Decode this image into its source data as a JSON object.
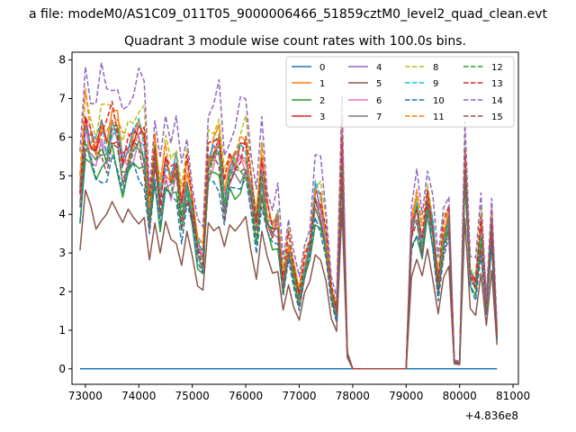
{
  "chart_data": {
    "type": "line",
    "suptitle": "a file: modeM0/AS1C09_011T05_9000006466_51859cztM0_level2_quad_clean.evt",
    "title": "Quadrant 3 module wise count rates with 100.0s bins.",
    "xlabel": "",
    "ylabel": "",
    "x_offset_label": "+4.836e8",
    "xlim": [
      72750,
      81100
    ],
    "ylim": [
      -0.4,
      8.2
    ],
    "xticks": [
      73000,
      74000,
      75000,
      76000,
      77000,
      78000,
      79000,
      80000,
      81000
    ],
    "yticks": [
      0,
      1,
      2,
      3,
      4,
      5,
      6,
      7,
      8
    ],
    "grid": false,
    "legend_placement": "top-right",
    "x": [
      72900,
      73000,
      73100,
      73200,
      73300,
      73400,
      73500,
      73600,
      73700,
      73800,
      73900,
      74000,
      74100,
      74200,
      74300,
      74400,
      74500,
      74600,
      74700,
      74800,
      74900,
      75000,
      75100,
      75200,
      75300,
      75400,
      75500,
      75600,
      75700,
      75800,
      75900,
      76000,
      76100,
      76200,
      76300,
      76400,
      76500,
      76600,
      76700,
      76800,
      76900,
      77000,
      77100,
      77200,
      77300,
      77400,
      77500,
      77600,
      77700,
      77800,
      77900,
      78000,
      78100,
      78200,
      78300,
      78400,
      78500,
      78600,
      78700,
      78800,
      78900,
      79000,
      79100,
      79200,
      79300,
      79400,
      79500,
      79600,
      79700,
      79800,
      79900,
      80000,
      80100,
      80200,
      80300,
      80400,
      80500,
      80600,
      80700
    ],
    "base_profile": [
      4.6,
      6.4,
      5.9,
      5.6,
      6.0,
      5.8,
      6.3,
      6.1,
      5.4,
      5.7,
      5.9,
      6.0,
      5.8,
      4.0,
      5.6,
      4.4,
      5.3,
      4.9,
      5.2,
      4.1,
      5.0,
      4.2,
      3.2,
      2.9,
      5.4,
      5.6,
      5.8,
      4.5,
      5.2,
      5.3,
      5.5,
      5.6,
      4.6,
      3.7,
      5.2,
      4.0,
      3.6,
      3.8,
      2.2,
      3.2,
      2.5,
      1.9,
      2.7,
      3.2,
      4.5,
      4.2,
      3.3,
      2.0,
      1.5,
      5.8,
      0.4,
      0.0,
      0.0,
      0.0,
      0.0,
      0.0,
      0.0,
      0.0,
      0.0,
      0.0,
      0.0,
      0.0,
      3.6,
      4.2,
      3.3,
      4.4,
      3.6,
      2.2,
      3.4,
      3.9,
      0.2,
      0.15,
      5.4,
      2.4,
      2.2,
      3.6,
      1.6,
      3.8,
      0.9
    ],
    "series": [
      {
        "name": "0",
        "scale": 0.0,
        "color": "#1f77b4",
        "dash": false
      },
      {
        "name": "1",
        "scale": 1.03,
        "color": "#ff7f0e",
        "dash": false
      },
      {
        "name": "2",
        "scale": 0.88,
        "color": "#2ca02c",
        "dash": false
      },
      {
        "name": "3",
        "scale": 1.0,
        "color": "#d62728",
        "dash": false
      },
      {
        "name": "4",
        "scale": 0.99,
        "color": "#9467bd",
        "dash": false
      },
      {
        "name": "5",
        "scale": 0.68,
        "color": "#8c564b",
        "dash": false
      },
      {
        "name": "6",
        "scale": 0.97,
        "color": "#e377c2",
        "dash": false
      },
      {
        "name": "7",
        "scale": 0.95,
        "color": "#7f7f7f",
        "dash": false
      },
      {
        "name": "8",
        "scale": 1.1,
        "color": "#bcbd22",
        "dash": true
      },
      {
        "name": "9",
        "scale": 1.01,
        "color": "#17becf",
        "dash": true
      },
      {
        "name": "10",
        "scale": 0.86,
        "color": "#1f77b4",
        "dash": true
      },
      {
        "name": "11",
        "scale": 1.05,
        "color": "#ff7f0e",
        "dash": true
      },
      {
        "name": "12",
        "scale": 0.96,
        "color": "#2ca02c",
        "dash": true
      },
      {
        "name": "13",
        "scale": 1.04,
        "color": "#d62728",
        "dash": true
      },
      {
        "name": "14",
        "scale": 1.22,
        "color": "#9467bd",
        "dash": true
      },
      {
        "name": "15",
        "scale": 0.93,
        "color": "#8c564b",
        "dash": true
      }
    ]
  }
}
